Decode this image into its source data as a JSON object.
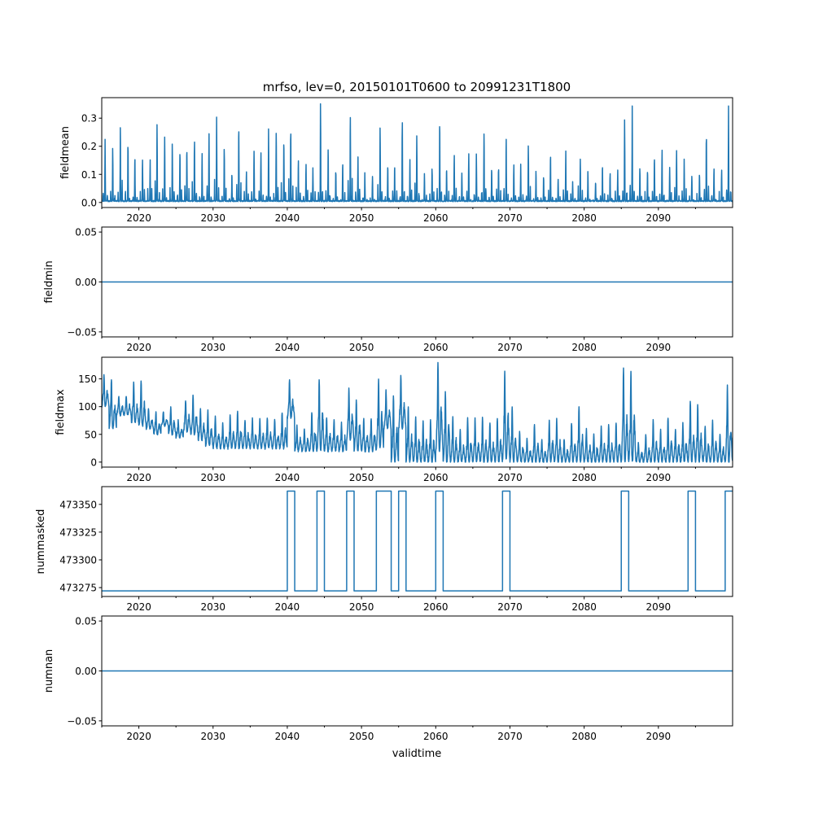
{
  "chart_data": {
    "title": "mrfso, lev=0, 20150101T0600 to 20991231T1800",
    "xlabel": "validtime",
    "xlim": [
      2015,
      2100
    ],
    "x_ticks": [
      2020,
      2030,
      2040,
      2050,
      2060,
      2070,
      2080,
      2090
    ],
    "x_minor_ticks": [
      2015,
      2025,
      2035,
      2045,
      2055,
      2065,
      2075,
      2085,
      2095
    ],
    "color": "#1f77b4",
    "panels": [
      {
        "name": "fieldmean",
        "type": "line",
        "ylabel": "fieldmean",
        "ylim": [
          -0.018,
          0.373
        ],
        "yticks": [
          0.0,
          0.1,
          0.2,
          0.3
        ],
        "ytick_labels": [
          "0.0",
          "0.1",
          "0.2",
          "0.3"
        ],
        "shape": "spiky",
        "years_start": 2015,
        "annual_peak": [
          0.22,
          0.19,
          0.27,
          0.21,
          0.16,
          0.15,
          0.15,
          0.27,
          0.23,
          0.21,
          0.18,
          0.19,
          0.22,
          0.17,
          0.24,
          0.3,
          0.19,
          0.1,
          0.27,
          0.11,
          0.18,
          0.17,
          0.26,
          0.25,
          0.22,
          0.26,
          0.15,
          0.13,
          0.12,
          0.35,
          0.19,
          0.11,
          0.14,
          0.31,
          0.16,
          0.1,
          0.09,
          0.27,
          0.13,
          0.13,
          0.29,
          0.15,
          0.23,
          0.1,
          0.12,
          0.29,
          0.12,
          0.17,
          0.1,
          0.17,
          0.17,
          0.25,
          0.12,
          0.12,
          0.23,
          0.13,
          0.13,
          0.2,
          0.11,
          0.09,
          0.17,
          0.08,
          0.18,
          0.07,
          0.15,
          0.11,
          0.07,
          0.13,
          0.1,
          0.11,
          0.29,
          0.34,
          0.12,
          0.11,
          0.16,
          0.19,
          0.12,
          0.18,
          0.15,
          0.09,
          0.1,
          0.24,
          0.12,
          0.11,
          0.34
        ],
        "annual_min": 0.003
      },
      {
        "name": "fieldmin",
        "type": "line",
        "ylabel": "fieldmin",
        "ylim": [
          -0.055,
          0.055
        ],
        "yticks": [
          -0.05,
          0.0,
          0.05
        ],
        "ytick_labels": [
          "−0.05",
          "0.00",
          "0.05"
        ],
        "shape": "constant",
        "value": 0.0
      },
      {
        "name": "fieldmax",
        "type": "line",
        "ylabel": "fieldmax",
        "ylim": [
          -9,
          189
        ],
        "yticks": [
          0,
          50,
          100,
          150
        ],
        "ytick_labels": [
          "0",
          "50",
          "100",
          "150"
        ],
        "shape": "oscillating",
        "years_start": 2015,
        "annual_peak": [
          158,
          150,
          118,
          120,
          145,
          148,
          95,
          90,
          90,
          100,
          75,
          112,
          120,
          95,
          93,
          82,
          70,
          85,
          92,
          75,
          78,
          78,
          80,
          78,
          90,
          147,
          65,
          60,
          90,
          150,
          80,
          78,
          70,
          133,
          113,
          78,
          78,
          150,
          130,
          120,
          155,
          100,
          80,
          75,
          78,
          180,
          125,
          80,
          60,
          80,
          80,
          80,
          70,
          78,
          165,
          100,
          55,
          42,
          68,
          40,
          76,
          78,
          42,
          70,
          100,
          60,
          50,
          64,
          68,
          70,
          170,
          165,
          35,
          50,
          75,
          58,
          80,
          60,
          70,
          110,
          103,
          65,
          75,
          50,
          138
        ],
        "annual_min": [
          100,
          60,
          85,
          85,
          70,
          65,
          60,
          50,
          65,
          50,
          45,
          55,
          50,
          40,
          30,
          25,
          25,
          25,
          25,
          25,
          25,
          25,
          25,
          25,
          25,
          80,
          20,
          20,
          20,
          20,
          20,
          20,
          20,
          40,
          20,
          20,
          20,
          25,
          60,
          0,
          60,
          0,
          0,
          0,
          0,
          20,
          0,
          0,
          0,
          0,
          0,
          0,
          0,
          0,
          5,
          0,
          0,
          0,
          0,
          0,
          0,
          0,
          0,
          0,
          0,
          0,
          0,
          0,
          0,
          0,
          0,
          0,
          0,
          0,
          0,
          0,
          0,
          0,
          0,
          0,
          0,
          0,
          0,
          0,
          0
        ]
      },
      {
        "name": "nummasked",
        "type": "line",
        "ylabel": "nummasked",
        "ylim": [
          473267,
          473366
        ],
        "yticks": [
          473275,
          473300,
          473325,
          473350
        ],
        "ytick_labels": [
          "473275",
          "473300",
          "473325",
          "473350"
        ],
        "shape": "step",
        "low": 473272,
        "high": 473362,
        "high_intervals": [
          [
            2040,
            2041
          ],
          [
            2044,
            2045
          ],
          [
            2048,
            2049
          ],
          [
            2052,
            2054
          ],
          [
            2055,
            2056
          ],
          [
            2060,
            2061
          ],
          [
            2069,
            2070
          ],
          [
            2085,
            2086
          ],
          [
            2094,
            2095
          ],
          [
            2099,
            2100
          ]
        ]
      },
      {
        "name": "numnan",
        "type": "line",
        "ylabel": "numnan",
        "ylim": [
          -0.055,
          0.055
        ],
        "yticks": [
          -0.05,
          0.0,
          0.05
        ],
        "ytick_labels": [
          "−0.05",
          "0.00",
          "0.05"
        ],
        "shape": "constant",
        "value": 0.0
      }
    ]
  }
}
